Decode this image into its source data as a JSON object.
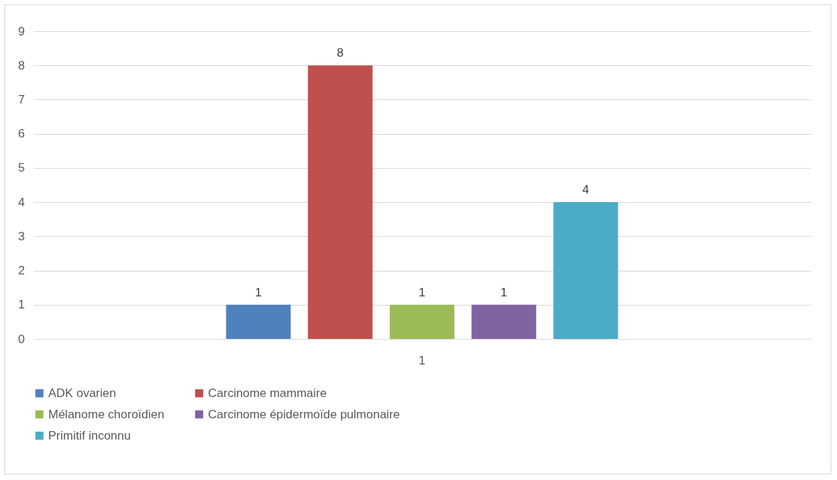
{
  "chart_data": {
    "type": "bar",
    "categories": [
      "1"
    ],
    "series": [
      {
        "name": "ADK ovarien",
        "color": "#4f81bd",
        "values": [
          1
        ]
      },
      {
        "name": "Carcinome mammaire",
        "color": "#c0504d",
        "values": [
          8
        ]
      },
      {
        "name": "Mélanome choroïdien",
        "color": "#9bbb59",
        "values": [
          1
        ]
      },
      {
        "name": "Carcinome épidermoïde pulmonaire",
        "color": "#8064a2",
        "values": [
          1
        ]
      },
      {
        "name": "Primitif inconnu",
        "color": "#4bacc6",
        "values": [
          4
        ]
      }
    ],
    "ylim": [
      0,
      9
    ],
    "yticks": [
      0,
      1,
      2,
      3,
      4,
      5,
      6,
      7,
      8,
      9
    ],
    "grid": "y",
    "legend": "bottom",
    "data_labels": true
  }
}
